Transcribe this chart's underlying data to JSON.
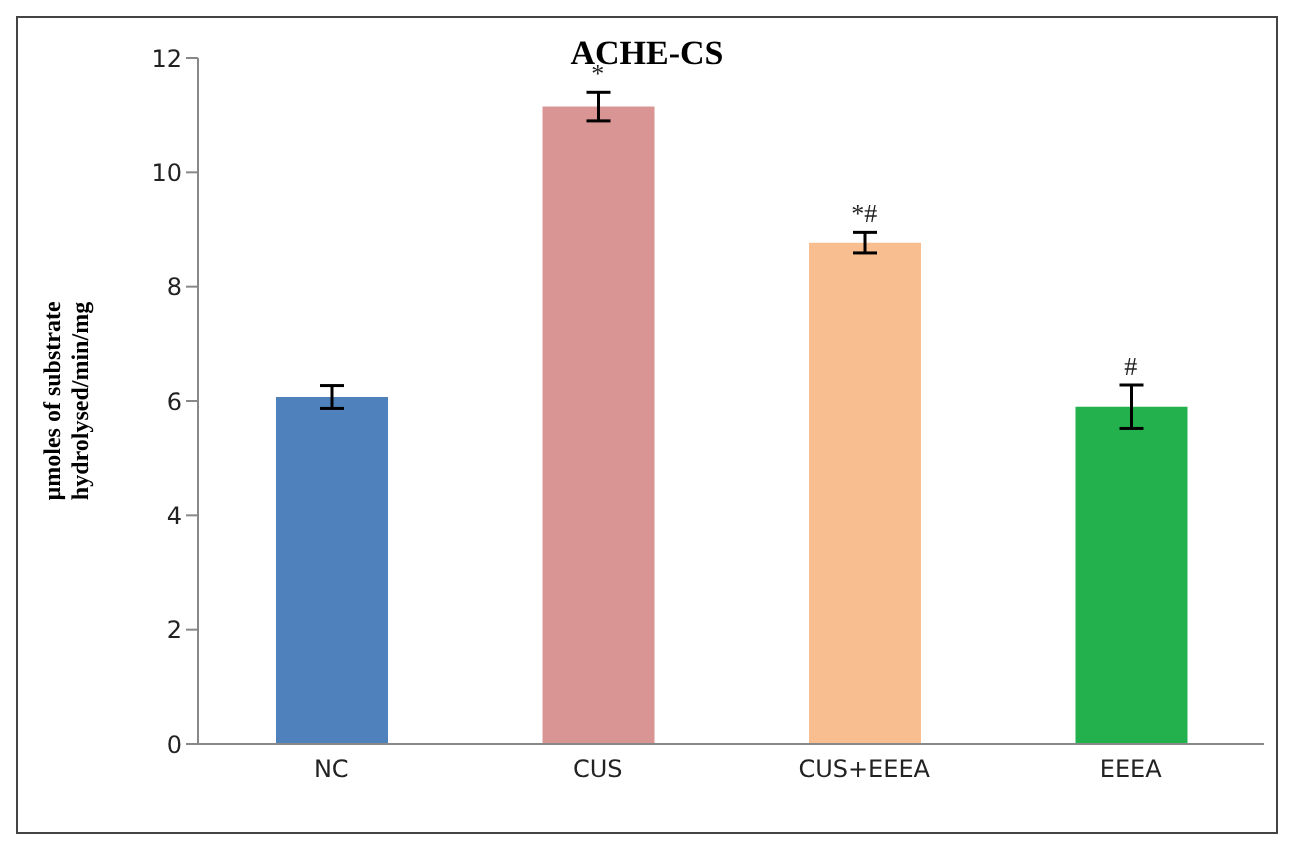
{
  "chart_data": {
    "type": "bar",
    "title": "ACHE-CS",
    "ylabel": "µmoles of substrate hydrolysed/min/mg",
    "categories": [
      "NC",
      "CUS",
      "CUS+EEEA",
      "EEEA"
    ],
    "values": [
      6.07,
      11.15,
      8.77,
      5.9
    ],
    "errors": [
      0.2,
      0.25,
      0.18,
      0.38
    ],
    "colors": [
      "#4f81bd",
      "#d99594",
      "#f9be8f",
      "#23b14d"
    ],
    "ylim": [
      0,
      12
    ],
    "yticks": [
      0,
      2,
      4,
      6,
      8,
      10,
      12
    ],
    "grid": false,
    "legend": false,
    "annotations": [
      {
        "text": "*",
        "x": "CUS",
        "y": 11.4
      },
      {
        "text": "*#",
        "x": "CUS+EEEA",
        "y": 8.95
      },
      {
        "text": "#",
        "x": "EEEA",
        "y": 6.28
      }
    ]
  }
}
